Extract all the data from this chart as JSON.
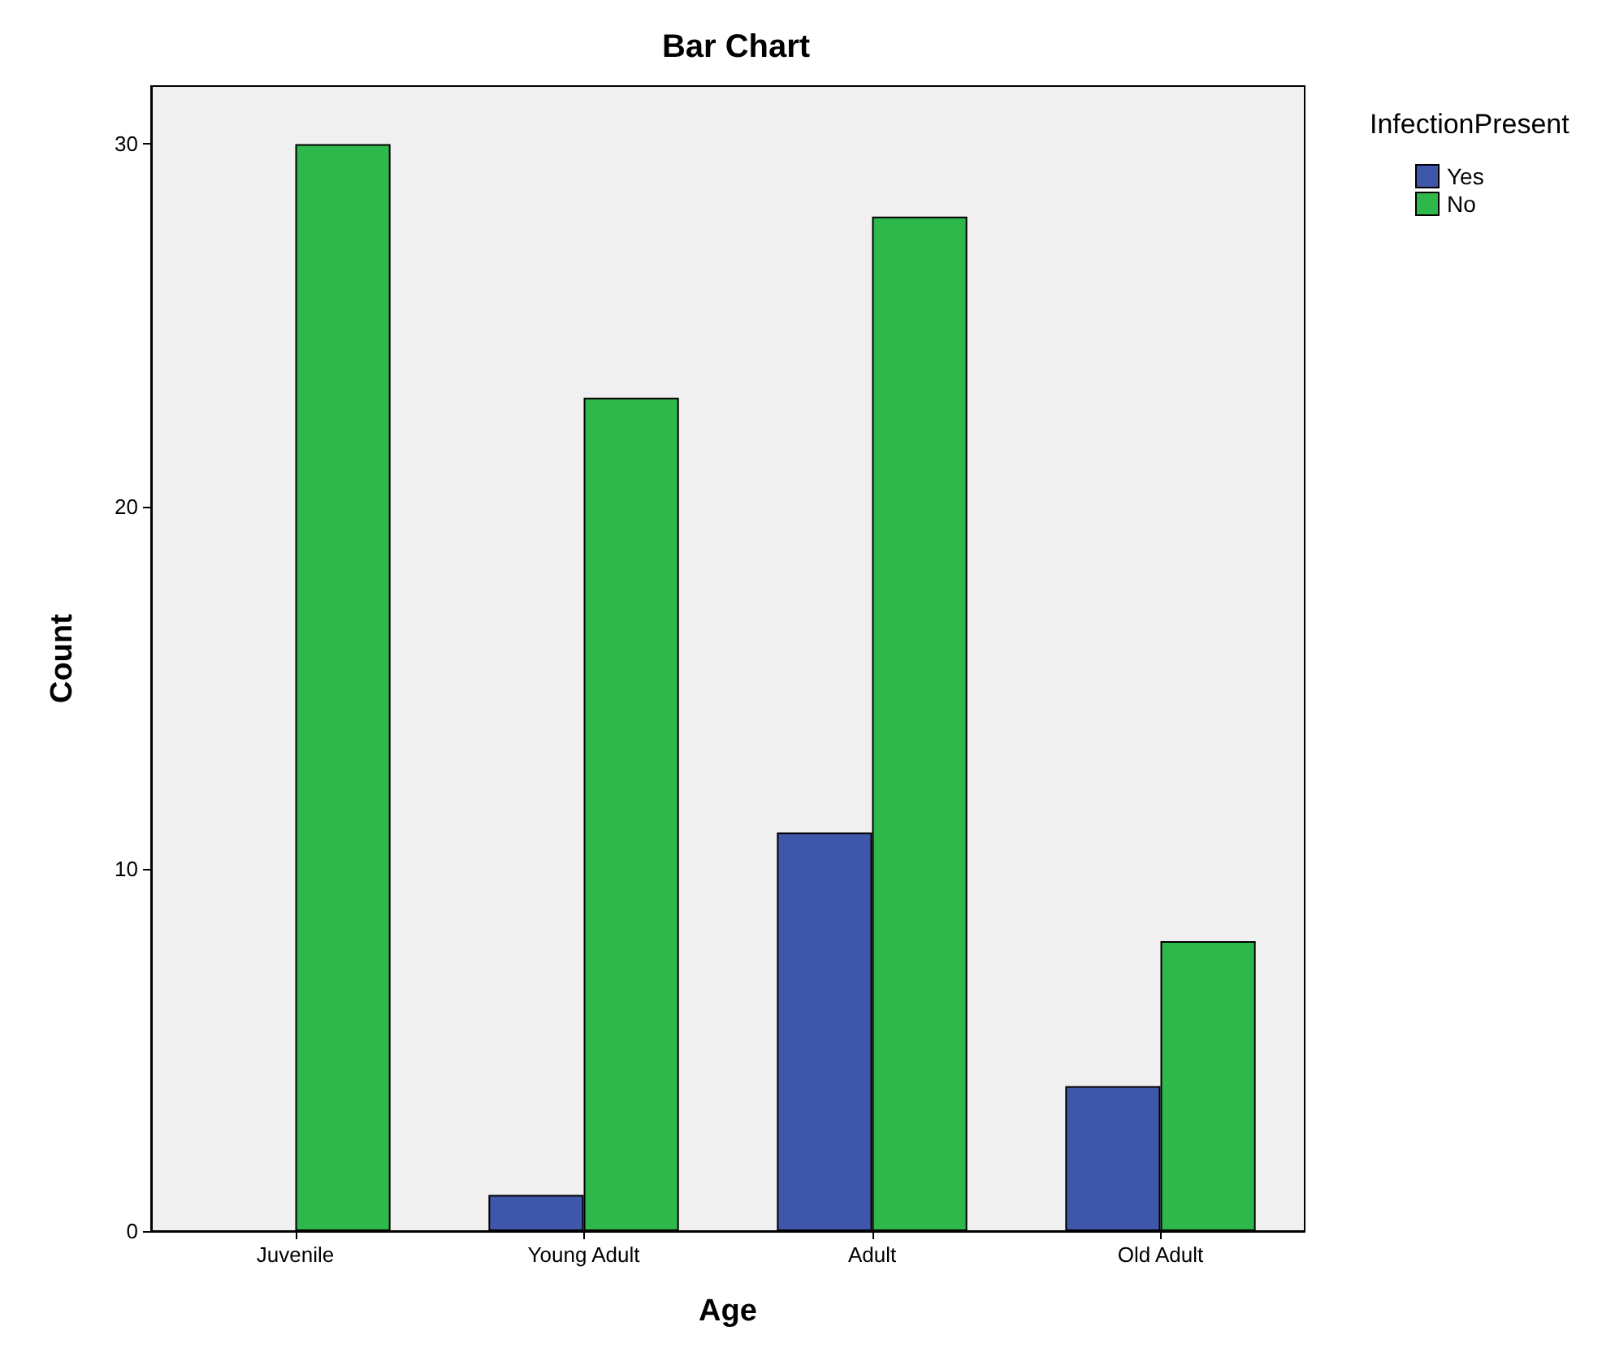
{
  "chart_data": {
    "type": "bar",
    "title": "Bar Chart",
    "xlabel": "Age",
    "ylabel": "Count",
    "legend_title": "InfectionPresent",
    "categories": [
      "Juvenile",
      "Young Adult",
      "Adult",
      "Old Adult"
    ],
    "series": [
      {
        "name": "Yes",
        "color": "#3e57ab",
        "values": [
          null,
          1,
          11,
          4
        ]
      },
      {
        "name": "No",
        "color": "#2eb84b",
        "values": [
          30,
          23,
          28,
          8
        ]
      }
    ],
    "ylim": [
      0,
      31.6
    ],
    "yticks": [
      0,
      10,
      20,
      30
    ],
    "grid": false,
    "legend": "top right"
  }
}
